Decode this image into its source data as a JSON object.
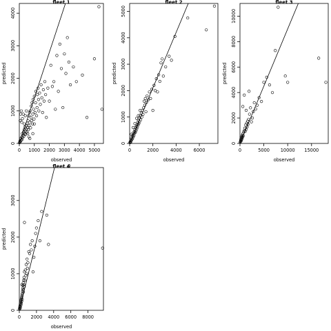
{
  "chart_data": [
    {
      "type": "scatter",
      "title": "fleet 1",
      "xlabel": "observed",
      "ylabel": "predicted",
      "xlim": [
        0,
        5600
      ],
      "ylim": [
        0,
        4300
      ],
      "xticks": [
        0,
        1000,
        2000,
        3000,
        4000,
        5000
      ],
      "yticks": [
        0,
        1000,
        2000,
        3000,
        4000
      ],
      "line": {
        "intercept": 0,
        "slope": 1.4
      },
      "points": [
        [
          10,
          20
        ],
        [
          30,
          40
        ],
        [
          50,
          80
        ],
        [
          80,
          60
        ],
        [
          100,
          150
        ],
        [
          120,
          100
        ],
        [
          150,
          200
        ],
        [
          180,
          120
        ],
        [
          200,
          300
        ],
        [
          220,
          180
        ],
        [
          250,
          250
        ],
        [
          280,
          350
        ],
        [
          300,
          220
        ],
        [
          320,
          420
        ],
        [
          350,
          300
        ],
        [
          380,
          500
        ],
        [
          400,
          380
        ],
        [
          420,
          280
        ],
        [
          450,
          450
        ],
        [
          480,
          550
        ],
        [
          500,
          350
        ],
        [
          520,
          600
        ],
        [
          550,
          480
        ],
        [
          580,
          700
        ],
        [
          600,
          420
        ],
        [
          620,
          850
        ],
        [
          650,
          550
        ],
        [
          680,
          950
        ],
        [
          700,
          650
        ],
        [
          720,
          1000
        ],
        [
          750,
          480
        ],
        [
          780,
          800
        ],
        [
          800,
          1150
        ],
        [
          820,
          700
        ],
        [
          850,
          1250
        ],
        [
          880,
          600
        ],
        [
          900,
          900
        ],
        [
          920,
          1350
        ],
        [
          950,
          1050
        ],
        [
          980,
          750
        ],
        [
          1000,
          1450
        ],
        [
          1050,
          950
        ],
        [
          1080,
          1250
        ],
        [
          1100,
          1600
        ],
        [
          1150,
          850
        ],
        [
          1180,
          1100
        ],
        [
          1200,
          1500
        ],
        [
          1250,
          1700
        ],
        [
          1280,
          1350
        ],
        [
          1300,
          1000
        ],
        [
          1350,
          1550
        ],
        [
          1400,
          1200
        ],
        [
          1450,
          1800
        ],
        [
          1500,
          1400
        ],
        [
          1550,
          950
        ],
        [
          1600,
          1650
        ],
        [
          1650,
          1300
        ],
        [
          1700,
          1900
        ],
        [
          1750,
          1500
        ],
        [
          1800,
          800
        ],
        [
          1900,
          1700
        ],
        [
          2000,
          1300
        ],
        [
          2100,
          2400
        ],
        [
          2200,
          1750
        ],
        [
          2300,
          1900
        ],
        [
          2400,
          1050
        ],
        [
          2500,
          2700
        ],
        [
          2600,
          1600
        ],
        [
          2700,
          3050
        ],
        [
          2800,
          2300
        ],
        [
          2900,
          1100
        ],
        [
          3000,
          2750
        ],
        [
          3100,
          2150
        ],
        [
          3200,
          3250
        ],
        [
          3300,
          2500
        ],
        [
          3400,
          1800
        ],
        [
          3600,
          2350
        ],
        [
          3800,
          1900
        ],
        [
          4200,
          2100
        ],
        [
          4500,
          800
        ],
        [
          5000,
          2600
        ],
        [
          5300,
          4200
        ],
        [
          5500,
          1050
        ],
        [
          60,
          700
        ],
        [
          90,
          900
        ],
        [
          130,
          1000
        ],
        [
          160,
          650
        ],
        [
          210,
          760
        ],
        [
          260,
          900
        ],
        [
          330,
          600
        ],
        [
          400,
          850
        ],
        [
          470,
          1000
        ],
        [
          560,
          300
        ],
        [
          640,
          200
        ],
        [
          700,
          150
        ],
        [
          900,
          300
        ],
        [
          1000,
          600
        ]
      ]
    },
    {
      "type": "scatter",
      "title": "fleet 2",
      "xlabel": "observed",
      "ylabel": "predicted",
      "xlim": [
        0,
        7600
      ],
      "ylim": [
        0,
        5300
      ],
      "xticks": [
        0,
        2000,
        4000,
        6000
      ],
      "yticks": [
        0,
        1000,
        2000,
        3000,
        4000,
        5000
      ],
      "line": {
        "intercept": 0,
        "slope": 1.05
      },
      "points": [
        [
          20,
          30
        ],
        [
          50,
          60
        ],
        [
          80,
          40
        ],
        [
          100,
          120
        ],
        [
          130,
          90
        ],
        [
          160,
          200
        ],
        [
          190,
          150
        ],
        [
          220,
          280
        ],
        [
          250,
          180
        ],
        [
          280,
          320
        ],
        [
          310,
          250
        ],
        [
          340,
          400
        ],
        [
          370,
          300
        ],
        [
          400,
          450
        ],
        [
          430,
          380
        ],
        [
          460,
          520
        ],
        [
          490,
          420
        ],
        [
          520,
          600
        ],
        [
          550,
          480
        ],
        [
          580,
          650
        ],
        [
          610,
          550
        ],
        [
          640,
          720
        ],
        [
          670,
          620
        ],
        [
          700,
          800
        ],
        [
          730,
          700
        ],
        [
          760,
          880
        ],
        [
          790,
          750
        ],
        [
          820,
          950
        ],
        [
          850,
          820
        ],
        [
          900,
          1050
        ],
        [
          950,
          900
        ],
        [
          1000,
          1150
        ],
        [
          1050,
          1000
        ],
        [
          1100,
          1250
        ],
        [
          1150,
          1100
        ],
        [
          1200,
          1350
        ],
        [
          1250,
          1600
        ],
        [
          1300,
          1450
        ],
        [
          1350,
          1700
        ],
        [
          1400,
          1200
        ],
        [
          1450,
          1550
        ],
        [
          1500,
          1800
        ],
        [
          1600,
          1650
        ],
        [
          1700,
          1950
        ],
        [
          1800,
          1700
        ],
        [
          1900,
          2050
        ],
        [
          2000,
          1250
        ],
        [
          2100,
          2200
        ],
        [
          2200,
          2000
        ],
        [
          2300,
          2450
        ],
        [
          2400,
          1950
        ],
        [
          2500,
          2600
        ],
        [
          2600,
          2350
        ],
        [
          2700,
          3050
        ],
        [
          2800,
          3200
        ],
        [
          2900,
          2550
        ],
        [
          3100,
          2900
        ],
        [
          3400,
          3300
        ],
        [
          3600,
          3150
        ],
        [
          3900,
          4050
        ],
        [
          5000,
          4750
        ],
        [
          6600,
          4300
        ],
        [
          7300,
          5200
        ],
        [
          150,
          350
        ],
        [
          300,
          600
        ],
        [
          450,
          750
        ],
        [
          600,
          950
        ],
        [
          750,
          1050
        ],
        [
          900,
          1250
        ]
      ]
    },
    {
      "type": "scatter",
      "title": "fleet 3",
      "xlabel": "observed",
      "ylabel": "predicted",
      "xlim": [
        0,
        18500
      ],
      "ylim": [
        0,
        11000
      ],
      "xticks": [
        0,
        5000,
        10000,
        15000
      ],
      "yticks": [
        0,
        2000,
        4000,
        6000,
        8000,
        10000
      ],
      "line": {
        "intercept": 0,
        "slope": 0.9
      },
      "points": [
        [
          50,
          80
        ],
        [
          100,
          150
        ],
        [
          150,
          250
        ],
        [
          200,
          350
        ],
        [
          250,
          200
        ],
        [
          300,
          450
        ],
        [
          350,
          300
        ],
        [
          400,
          550
        ],
        [
          450,
          400
        ],
        [
          500,
          650
        ],
        [
          550,
          500
        ],
        [
          600,
          750
        ],
        [
          700,
          600
        ],
        [
          800,
          900
        ],
        [
          900,
          1000
        ],
        [
          1000,
          1200
        ],
        [
          1100,
          950
        ],
        [
          1200,
          1450
        ],
        [
          1300,
          1100
        ],
        [
          1400,
          1600
        ],
        [
          1500,
          1300
        ],
        [
          1600,
          1750
        ],
        [
          1700,
          1500
        ],
        [
          1800,
          1900
        ],
        [
          2000,
          2300
        ],
        [
          2200,
          2800
        ],
        [
          2400,
          1700
        ],
        [
          2600,
          2000
        ],
        [
          2800,
          2500
        ],
        [
          3000,
          3200
        ],
        [
          3300,
          2700
        ],
        [
          3600,
          3000
        ],
        [
          4000,
          3600
        ],
        [
          4500,
          3300
        ],
        [
          5000,
          4800
        ],
        [
          5600,
          5200
        ],
        [
          6200,
          4600
        ],
        [
          6800,
          4000
        ],
        [
          7400,
          7300
        ],
        [
          8000,
          10700
        ],
        [
          9500,
          5300
        ],
        [
          10000,
          4800
        ],
        [
          16500,
          6700
        ],
        [
          18000,
          4800
        ],
        [
          600,
          2900
        ],
        [
          900,
          3800
        ],
        [
          1300,
          2600
        ],
        [
          1900,
          4100
        ]
      ]
    },
    {
      "type": "scatter",
      "title": "fleet 4",
      "xlabel": "observed",
      "ylabel": "predicted",
      "xlim": [
        0,
        9800
      ],
      "ylim": [
        0,
        3900
      ],
      "xticks": [
        0,
        2000,
        4000,
        6000,
        8000
      ],
      "yticks": [
        0,
        1000,
        2000,
        3000
      ],
      "line": {
        "intercept": 0,
        "slope": 0.95
      },
      "points": [
        [
          20,
          30
        ],
        [
          40,
          60
        ],
        [
          60,
          100
        ],
        [
          80,
          50
        ],
        [
          100,
          140
        ],
        [
          120,
          180
        ],
        [
          140,
          90
        ],
        [
          160,
          220
        ],
        [
          180,
          260
        ],
        [
          200,
          150
        ],
        [
          220,
          300
        ],
        [
          240,
          200
        ],
        [
          260,
          340
        ],
        [
          280,
          250
        ],
        [
          300,
          380
        ],
        [
          320,
          420
        ],
        [
          340,
          300
        ],
        [
          360,
          460
        ],
        [
          380,
          520
        ],
        [
          400,
          600
        ],
        [
          420,
          680
        ],
        [
          440,
          560
        ],
        [
          460,
          750
        ],
        [
          480,
          500
        ],
        [
          500,
          820
        ],
        [
          520,
          700
        ],
        [
          550,
          900
        ],
        [
          580,
          650
        ],
        [
          600,
          1050
        ],
        [
          650,
          820
        ],
        [
          700,
          1100
        ],
        [
          750,
          950
        ],
        [
          800,
          1250
        ],
        [
          850,
          1000
        ],
        [
          900,
          1400
        ],
        [
          950,
          1150
        ],
        [
          1000,
          1300
        ],
        [
          1100,
          1600
        ],
        [
          1200,
          1550
        ],
        [
          1300,
          1800
        ],
        [
          1400,
          1650
        ],
        [
          1500,
          1900
        ],
        [
          1600,
          1050
        ],
        [
          1700,
          1450
        ],
        [
          1800,
          1750
        ],
        [
          1900,
          2100
        ],
        [
          2000,
          2250
        ],
        [
          2200,
          2450
        ],
        [
          2400,
          1900
        ],
        [
          2600,
          2700
        ],
        [
          3200,
          2600
        ],
        [
          3400,
          1800
        ],
        [
          5800,
          3950
        ],
        [
          9700,
          1700
        ],
        [
          600,
          2400
        ],
        [
          300,
          700
        ],
        [
          450,
          560
        ]
      ]
    }
  ]
}
